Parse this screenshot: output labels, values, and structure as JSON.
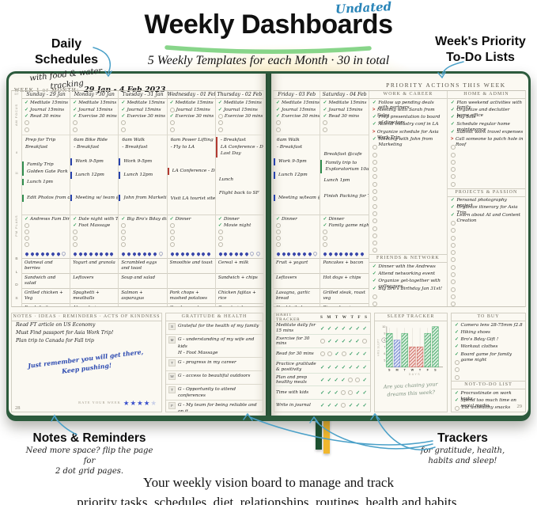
{
  "header": {
    "undated": "Undated",
    "title": "Weekly Dashboards",
    "subtitle": "5 Weekly Templates for each Month  ·  30 in total"
  },
  "callouts": {
    "daily": {
      "line1": "Daily",
      "line2": "Schedules",
      "sub": "with food & water tracking"
    },
    "priority": {
      "line1": "Week's Priority",
      "line2": "To-Do Lists"
    },
    "notes": {
      "title": "Notes & Reminders",
      "sub1": "Need more space? flip the page for",
      "sub2": "2 dot grid pages."
    },
    "trackers": {
      "title": "Trackers",
      "sub1": "for gratitude, health,",
      "sub2": "habits and sleep!"
    }
  },
  "footer": {
    "line1": "Your weekly vision board to manage and track",
    "line2": "priority tasks, schedules, diet, relationships, routines, health and habits."
  },
  "left_page": {
    "week_label": "WEEK 1 of MONTH:",
    "week_dates": "29 Jan  -  4 Feb 2023",
    "page_number": "28",
    "gutter": {
      "dt": "DT",
      "am": "AM FOCUS",
      "pm": "PM PLANS",
      "hours": [
        "8",
        "11"
      ],
      "meal_letters": [
        "B",
        "L",
        "D",
        "S"
      ]
    },
    "days": [
      {
        "name": "Sunday",
        "date": "29 Jan",
        "routines": [
          {
            "t": "Meditate 15mins",
            "c": 1
          },
          {
            "t": "Journal 15mins",
            "c": 1
          },
          {
            "t": "Read 30 mins",
            "c": 1
          }
        ],
        "routine_empty": 2,
        "schedule": [
          {
            "lines": [
              "Prep for Trip",
              "Breakfast"
            ]
          },
          {
            "lines": [
              "Family Trip",
              "Golden Gate Park 10am"
            ],
            "bar": "green",
            "gap": 14
          },
          {
            "lines": [
              "Lunch 1pm"
            ],
            "bar": "green",
            "gap": 4
          },
          {
            "lines": [
              "Edit Photos from daytrip"
            ],
            "bar": "green",
            "gap": 12
          }
        ],
        "pm": [
          "Andrews Fam Dinner"
        ],
        "pm_empty": 4,
        "water_filled": 7,
        "water_total": 8,
        "meals": [
          "Oatmeal and berries",
          "Sandwich and salad",
          "Grilled chicken + Veg",
          "Fresh fruit"
        ]
      },
      {
        "name": "Monday",
        "date": "30 Jan",
        "routines": [
          {
            "t": "Meditate 15mins",
            "c": 1
          },
          {
            "t": "Journal 15mins",
            "c": 1
          },
          {
            "t": "Exercise 30 mins",
            "c": 1
          }
        ],
        "routine_empty": 2,
        "schedule": [
          {
            "lines": [
              "6am Bike Ride",
              "- Breakfast"
            ]
          },
          {
            "lines": [
              "Work 9-5pm"
            ],
            "bar": "blue",
            "gap": 10
          },
          {
            "lines": [
              "Lunch 12pm"
            ],
            "bar": "blue",
            "gap": 8
          },
          {
            "lines": [
              "Meeting w/ team @4"
            ],
            "bar": "blue",
            "gap": 20
          }
        ],
        "pm": [
          "Date night with T",
          "Foot Massage"
        ],
        "pm_empty": 3,
        "water_filled": 8,
        "water_total": 8,
        "meals": [
          "Yogurt and granola",
          "Leftovers",
          "Spaghetti + meatballs",
          "Almonds + cranberries"
        ]
      },
      {
        "name": "Tuesday",
        "date": "31 Jan",
        "routines": [
          {
            "t": "Meditate 15mins",
            "c": 1
          },
          {
            "t": "Journal 15mins",
            "c": 1
          },
          {
            "t": "Exercise 30 mins",
            "c": 1
          }
        ],
        "routine_empty": 2,
        "schedule": [
          {
            "lines": [
              "6am Walk",
              "- Breakfast"
            ]
          },
          {
            "lines": [
              "Work 9-5pm"
            ],
            "bar": "blue",
            "gap": 10
          },
          {
            "lines": [
              "Lunch 12pm"
            ],
            "bar": "blue",
            "gap": 8
          },
          {
            "lines": [
              "John from Marketing @5"
            ],
            "bar": "blue",
            "gap": 20
          }
        ],
        "pm": [
          "Big Bro's Bday dinner"
        ],
        "pm_empty": 4,
        "water_filled": 7,
        "water_total": 8,
        "meals": [
          "Scrambled eggs and toast",
          "Soup and salad",
          "Salmon + asparagus",
          ""
        ]
      },
      {
        "name": "Wednesday",
        "date": "01 Feb",
        "routines": [
          {
            "t": "Meditate 15mins",
            "c": 1
          },
          {
            "t": "Journal 15mins",
            "c": 0
          },
          {
            "t": "Exercise 30 mins",
            "c": 1
          }
        ],
        "routine_empty": 2,
        "schedule": [
          {
            "lines": [
              "6am Power Lifting",
              "- Fly to LA"
            ]
          },
          {
            "lines": [
              "LA Conference - Day 1"
            ],
            "bar": "red",
            "gap": 22
          },
          {
            "lines": [
              "Visit LA tourist sites"
            ],
            "gap": 26
          }
        ],
        "pm": [
          "Dinner"
        ],
        "pm_empty": 4,
        "water_filled": 8,
        "water_total": 8,
        "meals": [
          "Smoothie and toast",
          "",
          "Pork chops + mashed potatoes",
          "Greek yogurt"
        ]
      },
      {
        "name": "Thursday",
        "date": "02 Feb",
        "routines": [
          {
            "t": "Meditate 15mins",
            "c": 1
          },
          {
            "t": "Journal 15mins",
            "c": 1
          },
          {
            "t": "Exercise 30 mins",
            "c": 0
          }
        ],
        "routine_empty": 2,
        "schedule": [
          {
            "lines": [
              "- Breakfast",
              "LA Conference - Day 2",
              "Last Day"
            ],
            "bar": "red"
          },
          {
            "lines": [
              "Lunch"
            ],
            "gap": 24
          },
          {
            "lines": [
              "Flight back to SF"
            ],
            "gap": 8
          }
        ],
        "pm": [
          "Dinner",
          "Movie night"
        ],
        "pm_empty": 3,
        "water_filled": 6,
        "water_total": 8,
        "meals": [
          "Cereal + milk",
          "Sandwich + chips",
          "Chicken fajitas + rice",
          "Carrots + hummus"
        ]
      }
    ],
    "notes": {
      "header": "NOTES · IDEAS · REMINDERS · ACTS OF KINDNESS · MEMORIES",
      "lines": [
        "Read FT article on US Economy",
        "Must Find passport for Asia Work Trip!",
        "Plan trip to Canada for Fall trip"
      ],
      "handwritten1": "Just remember you will get there,",
      "handwritten2": "Keep pushing!",
      "rate_label": "RATE YOUR WEEK",
      "stars_filled": 4,
      "stars_total": 5
    },
    "gratitude": {
      "header": "GRATITUDE & HEALTH",
      "rows": [
        {
          "d": "S",
          "text": "Grateful for the health of my family"
        },
        {
          "d": "M",
          "text": "G - understanding of my wife and kids",
          "text2": "H - Foot Massage"
        },
        {
          "d": "T",
          "text": "G - progress in my career"
        },
        {
          "d": "W",
          "text": "G - access to beautiful outdoors"
        },
        {
          "d": "T",
          "text": "G - Opportunity to attend conferences"
        },
        {
          "d": "F",
          "text": "G - My team for being reliable and on it"
        },
        {
          "d": "S",
          "text": ""
        }
      ]
    }
  },
  "right_page": {
    "priority_header": "PRIORITY ACTIONS THIS WEEK",
    "page_number": "29",
    "days": [
      {
        "name": "Friday",
        "date": "03 Feb",
        "routines": [
          {
            "t": "Meditate 15mins",
            "c": 1
          },
          {
            "t": "Journal 15mins",
            "c": 1
          },
          {
            "t": "Exercise 30 mins",
            "c": 1
          }
        ],
        "routine_empty": 2,
        "schedule": [
          {
            "lines": [
              "6am Walk",
              "- Breakfast"
            ]
          },
          {
            "lines": [
              "Work 9-5pm"
            ],
            "bar": "blue",
            "gap": 10
          },
          {
            "lines": [
              "Lunch 12pm"
            ],
            "bar": "blue",
            "gap": 8
          },
          {
            "lines": [
              "Meeting w/team @4"
            ],
            "bar": "blue",
            "gap": 20
          }
        ],
        "pm": [
          "Dinner"
        ],
        "pm_empty": 4,
        "water_filled": 7,
        "water_total": 8,
        "meals": [
          "Fruit + yogurt",
          "Leftovers",
          "Lasagna, garlic bread",
          "Hard-boiled eggs"
        ]
      },
      {
        "name": "Saturday",
        "date": "04 Feb",
        "routines": [
          {
            "t": "Meditate 15mins",
            "c": 1
          },
          {
            "t": "Journal 15mins",
            "c": 1
          },
          {
            "t": "Read 30 mins",
            "c": 1
          }
        ],
        "routine_empty": 2,
        "schedule": [
          {
            "lines": [
              "Breakfast @cafe"
            ],
            "gap": 20
          },
          {
            "lines": [
              "Family trip to",
              "Exploratorium 10am"
            ],
            "bar": "green"
          },
          {
            "lines": [
              "Lunch 1pm"
            ],
            "gap": 5
          },
          {
            "lines": [
              "Finish Packing for Trip"
            ],
            "gap": 11
          }
        ],
        "pm": [
          "Dinner",
          "Family game night"
        ],
        "pm_empty": 3,
        "water_filled": 8,
        "water_total": 8,
        "meals": [
          "Pancakes + bacon",
          "Hot dogs + chips",
          "Grilled steak, roast veg",
          "Rice cakes + peanut butter"
        ]
      }
    ],
    "work_career": {
      "header": "WORK & CAREER",
      "empty": 15,
      "items": [
        {
          "t": "Follow up pending deals with partners",
          "m": "check"
        },
        {
          "t": "Meeting with Sarah from Sales",
          "m": "arrow"
        },
        {
          "t": "Prep presentation to board of directors",
          "m": "check"
        },
        {
          "t": "Attend industry conf in LA",
          "m": "check"
        },
        {
          "t": "Organize schedule for Asia Work Trip",
          "m": "arrow"
        },
        {
          "t": "Meeting with John from Marketing",
          "m": "check"
        }
      ]
    },
    "friends_network": {
      "header": "FRIENDS & NETWORK",
      "empty": 3,
      "items": [
        {
          "t": "Dinner with the Andrews",
          "m": "check"
        },
        {
          "t": "Attend networking event",
          "m": "check"
        },
        {
          "t": "Organize get-together with colleagues",
          "m": "check"
        },
        {
          "t": "Big Bro's Birthday Jan 31st!",
          "m": "check"
        }
      ]
    },
    "home_admin": {
      "header": "HOME & ADMIN",
      "empty": 6,
      "items": [
        {
          "t": "Plan weekend activities with family",
          "m": "check"
        },
        {
          "t": "Organize and declutter home office",
          "m": "check"
        },
        {
          "t": "Pay bills",
          "m": "check"
        },
        {
          "t": "Schedule regular home maintenance",
          "m": "check"
        },
        {
          "t": "Submit work travel expenses",
          "m": "check"
        },
        {
          "t": "Call someone to patch hole in Roof",
          "m": "arrow"
        }
      ]
    },
    "projects_passion": {
      "header": "PROJECTS & PASSION",
      "empty": 12,
      "items": [
        {
          "t": "Personal photography project",
          "m": "check"
        },
        {
          "t": "Organize itinerary for Asia Trip",
          "m": "check"
        },
        {
          "t": "Learn about AI and Content Creation",
          "m": "check"
        }
      ]
    },
    "habit_tracker": {
      "header": "HABIT TRACKER",
      "day_letters": [
        "S",
        "M",
        "T",
        "W",
        "T",
        "F",
        "S"
      ],
      "habits": [
        {
          "t": "Meditate daily for 15 mins",
          "p": [
            1,
            1,
            1,
            1,
            1,
            1,
            1
          ]
        },
        {
          "t": "Exercise for 30 mins",
          "p": [
            0,
            1,
            1,
            1,
            1,
            1,
            0
          ]
        },
        {
          "t": "Read for 30 mins",
          "p": [
            0,
            0,
            1,
            0,
            1,
            1,
            1
          ]
        },
        {
          "t": "Practice gratitude & positivity",
          "p": [
            1,
            1,
            1,
            1,
            1,
            1,
            1
          ]
        },
        {
          "t": "Plan and prep healthy meals",
          "p": [
            1,
            1,
            1,
            1,
            0,
            0,
            1
          ]
        },
        {
          "t": "Time with kids",
          "p": [
            1,
            1,
            1,
            0,
            0,
            1,
            1
          ]
        },
        {
          "t": "Write in journal",
          "p": [
            1,
            1,
            1,
            0,
            1,
            1,
            1
          ]
        }
      ]
    },
    "sleep_tracker": {
      "header": "SLEEP TRACKER",
      "ylabel": "HRS SLEPT",
      "xlabel": "DAYS",
      "ymin": 5,
      "ymax": 10,
      "days": [
        "S",
        "M",
        "T",
        "W",
        "T",
        "F",
        "S"
      ],
      "hours": [
        9,
        8,
        9,
        7,
        7,
        9,
        10
      ],
      "colors": [
        "green",
        "blue",
        "green",
        "red",
        "red",
        "green",
        "green"
      ],
      "question1": "Are you chasing your",
      "question2": "dreams this week?"
    },
    "to_buy": {
      "header": "TO BUY",
      "empty": 3,
      "items": [
        {
          "t": "Camera lens 28-75mm f2.8",
          "c": 1
        },
        {
          "t": "Hiking shoes",
          "c": 1
        },
        {
          "t": "Bro's Bday Gift !",
          "c": 1
        },
        {
          "t": "Workout clothes",
          "c": 1
        },
        {
          "t": "Board game for family game night",
          "c": 1
        }
      ]
    },
    "not_to_do": {
      "header": "NOT-TO-DO LIST",
      "empty": 1,
      "items": [
        {
          "t": "Procrastinate on work tasks",
          "c": 1
        },
        {
          "t": "Spend too much time on social media",
          "c": 1
        },
        {
          "t": "Eat unhealthy snacks",
          "c": 0
        },
        {
          "t": "Neglect self-care",
          "c": 1
        }
      ]
    }
  },
  "chart_data": {
    "type": "bar",
    "title": "SLEEP TRACKER",
    "categories": [
      "S",
      "M",
      "T",
      "W",
      "T",
      "F",
      "S"
    ],
    "values": [
      9,
      8,
      9,
      7,
      7,
      9,
      10
    ],
    "xlabel": "DAYS",
    "ylabel": "HRS SLEPT",
    "ylim": [
      5,
      10
    ],
    "bar_colors": [
      "#4fae6e",
      "#7487cf",
      "#4fae6e",
      "#cf6e64",
      "#cf6e64",
      "#4fae6e",
      "#4fae6e"
    ]
  },
  "colors": {
    "accent_teal": "#3e97c6",
    "underline_green": "#7ed180",
    "check_green": "#2f9e57",
    "bar_green": "#2f8c4d",
    "bar_blue": "#2742ad",
    "bar_red": "#b23a31",
    "water_blue": "#3a48ab",
    "star_blue": "#3a50cc",
    "cover_green": "#2c5a3c",
    "ribbon_green": "#1c5130",
    "ribbon_yellow": "#f0b72e"
  }
}
